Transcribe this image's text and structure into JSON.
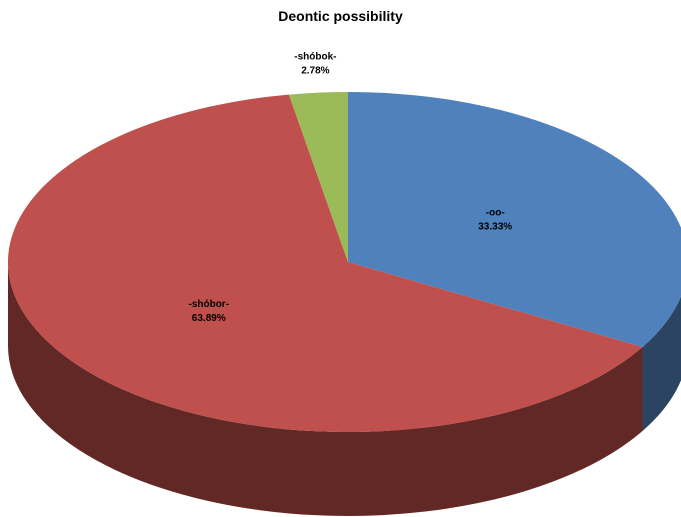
{
  "chart_data": {
    "type": "pie",
    "title": "Deontic possibility",
    "slices": [
      {
        "name": "-oo-",
        "value": 33.33,
        "label": "33.33%",
        "color": "#4f81bd",
        "side_color": "#2a4461"
      },
      {
        "name": "-shóbor-",
        "value": 63.89,
        "label": "63.89%",
        "color": "#c0504d",
        "side_color": "#622826"
      },
      {
        "name": "-shóbok-",
        "value": 2.78,
        "label": "2.78%",
        "color": "#9bbb59",
        "side_color": "#4f5f2d"
      }
    ],
    "legend": "none",
    "three_d": true
  }
}
